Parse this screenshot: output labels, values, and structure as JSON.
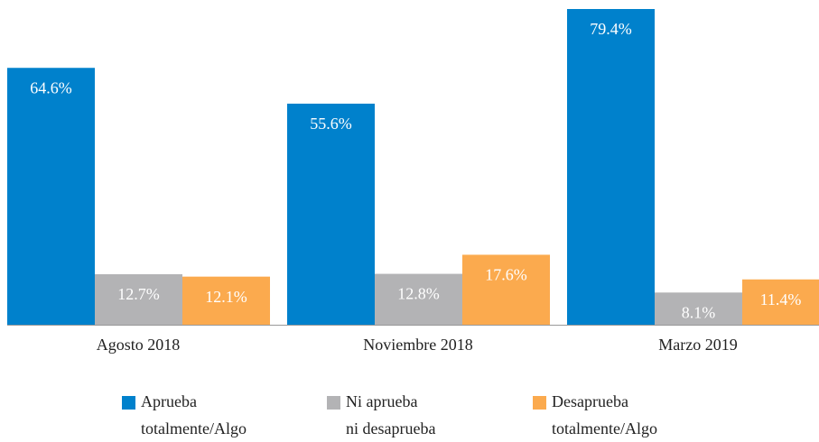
{
  "chart_data": {
    "type": "bar",
    "categories": [
      "Agosto 2018",
      "Noviembre 2018",
      "Marzo 2019"
    ],
    "series": [
      {
        "name": "Aprueba\ntotalmente/Algo",
        "color": "#0081cc",
        "values": [
          64.6,
          55.6,
          79.4
        ],
        "value_labels": [
          "64.6%",
          "55.6%",
          "79.4%"
        ]
      },
      {
        "name": "Ni aprueba\nni desaprueba",
        "color": "#b3b3b5",
        "values": [
          12.7,
          12.8,
          8.1
        ],
        "value_labels": [
          "12.7%",
          "12.8%",
          "8.1%"
        ]
      },
      {
        "name": "Desaprueba\ntotalmente/Algo",
        "color": "#fbaa4e",
        "values": [
          12.1,
          17.6,
          11.4
        ],
        "value_labels": [
          "12.1%",
          "17.6%",
          "11.4%"
        ]
      }
    ]
  }
}
